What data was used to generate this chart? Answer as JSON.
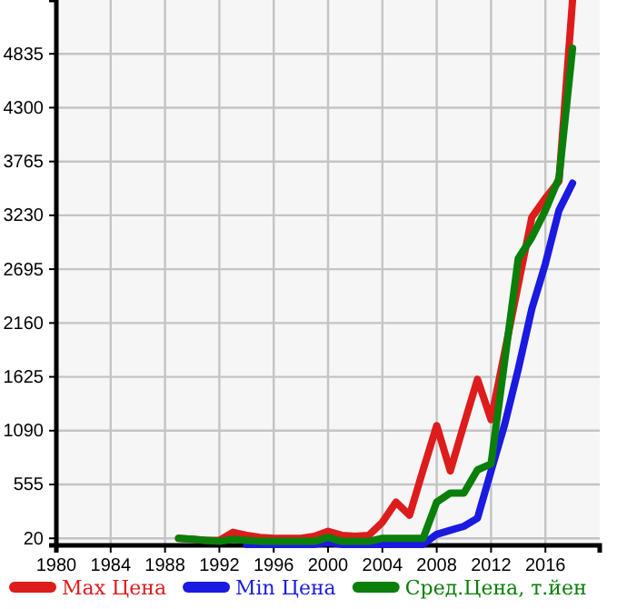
{
  "chart_data": {
    "type": "line",
    "x": [
      1989,
      1990,
      1991,
      1992,
      1993,
      1994,
      1995,
      1996,
      1997,
      1998,
      1999,
      2000,
      2001,
      2002,
      2003,
      2004,
      2005,
      2006,
      2007,
      2008,
      2009,
      2010,
      2011,
      2012,
      2013,
      2014,
      2015,
      2016,
      2017,
      2018
    ],
    "series": [
      {
        "name": "Max Цена",
        "color": "#dd1c1c",
        "values": [
          20,
          10,
          0,
          0,
          80,
          50,
          30,
          20,
          20,
          20,
          40,
          90,
          50,
          40,
          50,
          180,
          380,
          250,
          700,
          1140,
          690,
          1150,
          1600,
          1200,
          1870,
          2540,
          3210,
          3400,
          3570,
          5370
        ]
      },
      {
        "name": "Min Цена",
        "color": "#1a1ae0",
        "values": [
          null,
          null,
          null,
          null,
          null,
          -40,
          -40,
          -40,
          -40,
          -40,
          -40,
          -20,
          -40,
          -40,
          -40,
          -40,
          -40,
          -40,
          -40,
          60,
          100,
          140,
          220,
          690,
          1150,
          1700,
          2300,
          2750,
          3280,
          3550
        ]
      },
      {
        "name": "Сред.Цена, т.йен",
        "color": "#0a7f0a",
        "values": [
          20,
          10,
          0,
          -10,
          10,
          0,
          -10,
          -10,
          -10,
          -10,
          -10,
          30,
          -10,
          -10,
          -10,
          20,
          20,
          20,
          20,
          380,
          470,
          470,
          700,
          760,
          1780,
          2800,
          3010,
          3280,
          3600,
          4890
        ]
      }
    ],
    "xlim": [
      1980,
      2020
    ],
    "xticks": [
      1980,
      1984,
      1988,
      1992,
      1996,
      2000,
      2004,
      2008,
      2012,
      2016
    ],
    "ylim": [
      -50,
      5370
    ],
    "yticks": [
      20,
      555,
      1090,
      1625,
      2160,
      2695,
      3230,
      3765,
      4300,
      4835
    ],
    "grid": true,
    "legend": "bottom",
    "line_style": "solid",
    "marker": "none"
  }
}
